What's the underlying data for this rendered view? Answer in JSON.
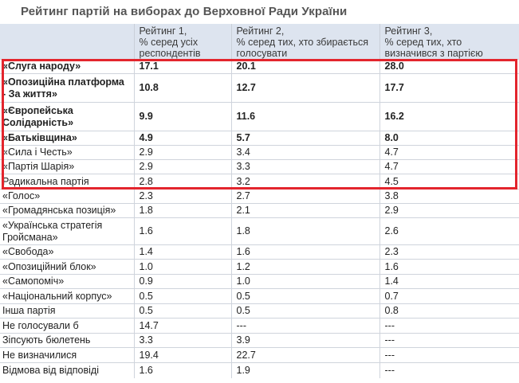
{
  "title": "Рейтинг партій на виборах до Верховної Ради України",
  "columns": [
    "",
    "Рейтинг 1,\n% серед усіх респондентів",
    "Рейтинг 2,\n% серед тих, хто збирається голосувати",
    "Рейтинг 3,\n% серед тих, хто визначився з партією"
  ],
  "rows": [
    {
      "party": "«Слуга народу»",
      "r1": "17.1",
      "r2": "20.1",
      "r3": "28.0",
      "bold": true
    },
    {
      "party": "«Опозиційна платформа - За життя»",
      "r1": "10.8",
      "r2": "12.7",
      "r3": "17.7",
      "bold": true
    },
    {
      "party": "«Європейська Солідарність»",
      "r1": "9.9",
      "r2": "11.6",
      "r3": "16.2",
      "bold": true
    },
    {
      "party": "«Батьківщина»",
      "r1": "4.9",
      "r2": "5.7",
      "r3": "8.0",
      "bold": true
    },
    {
      "party": "«Сила і Честь»",
      "r1": "2.9",
      "r2": "3.4",
      "r3": "4.7",
      "bold": false
    },
    {
      "party": "«Партія Шарія»",
      "r1": "2.9",
      "r2": "3.3",
      "r3": "4.7",
      "bold": false
    },
    {
      "party": "Радикальна партія",
      "r1": "2.8",
      "r2": "3.2",
      "r3": "4.5",
      "bold": false
    },
    {
      "party": "«Голос»",
      "r1": "2.3",
      "r2": "2.7",
      "r3": "3.8",
      "bold": false
    },
    {
      "party": "«Громадянська позиція»",
      "r1": "1.8",
      "r2": "2.1",
      "r3": "2.9",
      "bold": false
    },
    {
      "party": "«Українська стратегія Гройсмана»",
      "r1": "1.6",
      "r2": "1.8",
      "r3": "2.6",
      "bold": false
    },
    {
      "party": "«Свобода»",
      "r1": "1.4",
      "r2": "1.6",
      "r3": "2.3",
      "bold": false
    },
    {
      "party": "«Опозиційний блок»",
      "r1": "1.0",
      "r2": "1.2",
      "r3": "1.6",
      "bold": false
    },
    {
      "party": "«Самопоміч»",
      "r1": "0.9",
      "r2": "1.0",
      "r3": "1.4",
      "bold": false
    },
    {
      "party": "«Національний корпус»",
      "r1": "0.5",
      "r2": "0.5",
      "r3": "0.7",
      "bold": false
    },
    {
      "party": "Інша партія",
      "r1": "0.5",
      "r2": "0.5",
      "r3": "0.8",
      "bold": false
    },
    {
      "party": "Не голосували б",
      "r1": "14.7",
      "r2": "---",
      "r3": "---",
      "bold": false
    },
    {
      "party": "Зіпсують бюлетень",
      "r1": "3.3",
      "r2": "3.9",
      "r3": "---",
      "bold": false
    },
    {
      "party": "Не визначилися",
      "r1": "19.4",
      "r2": "22.7",
      "r3": "---",
      "bold": false
    },
    {
      "party": "Відмова від відповіді",
      "r1": "1.6",
      "r2": "1.9",
      "r3": "---",
      "bold": false
    }
  ],
  "highlight": {
    "color": "#e3252d"
  }
}
